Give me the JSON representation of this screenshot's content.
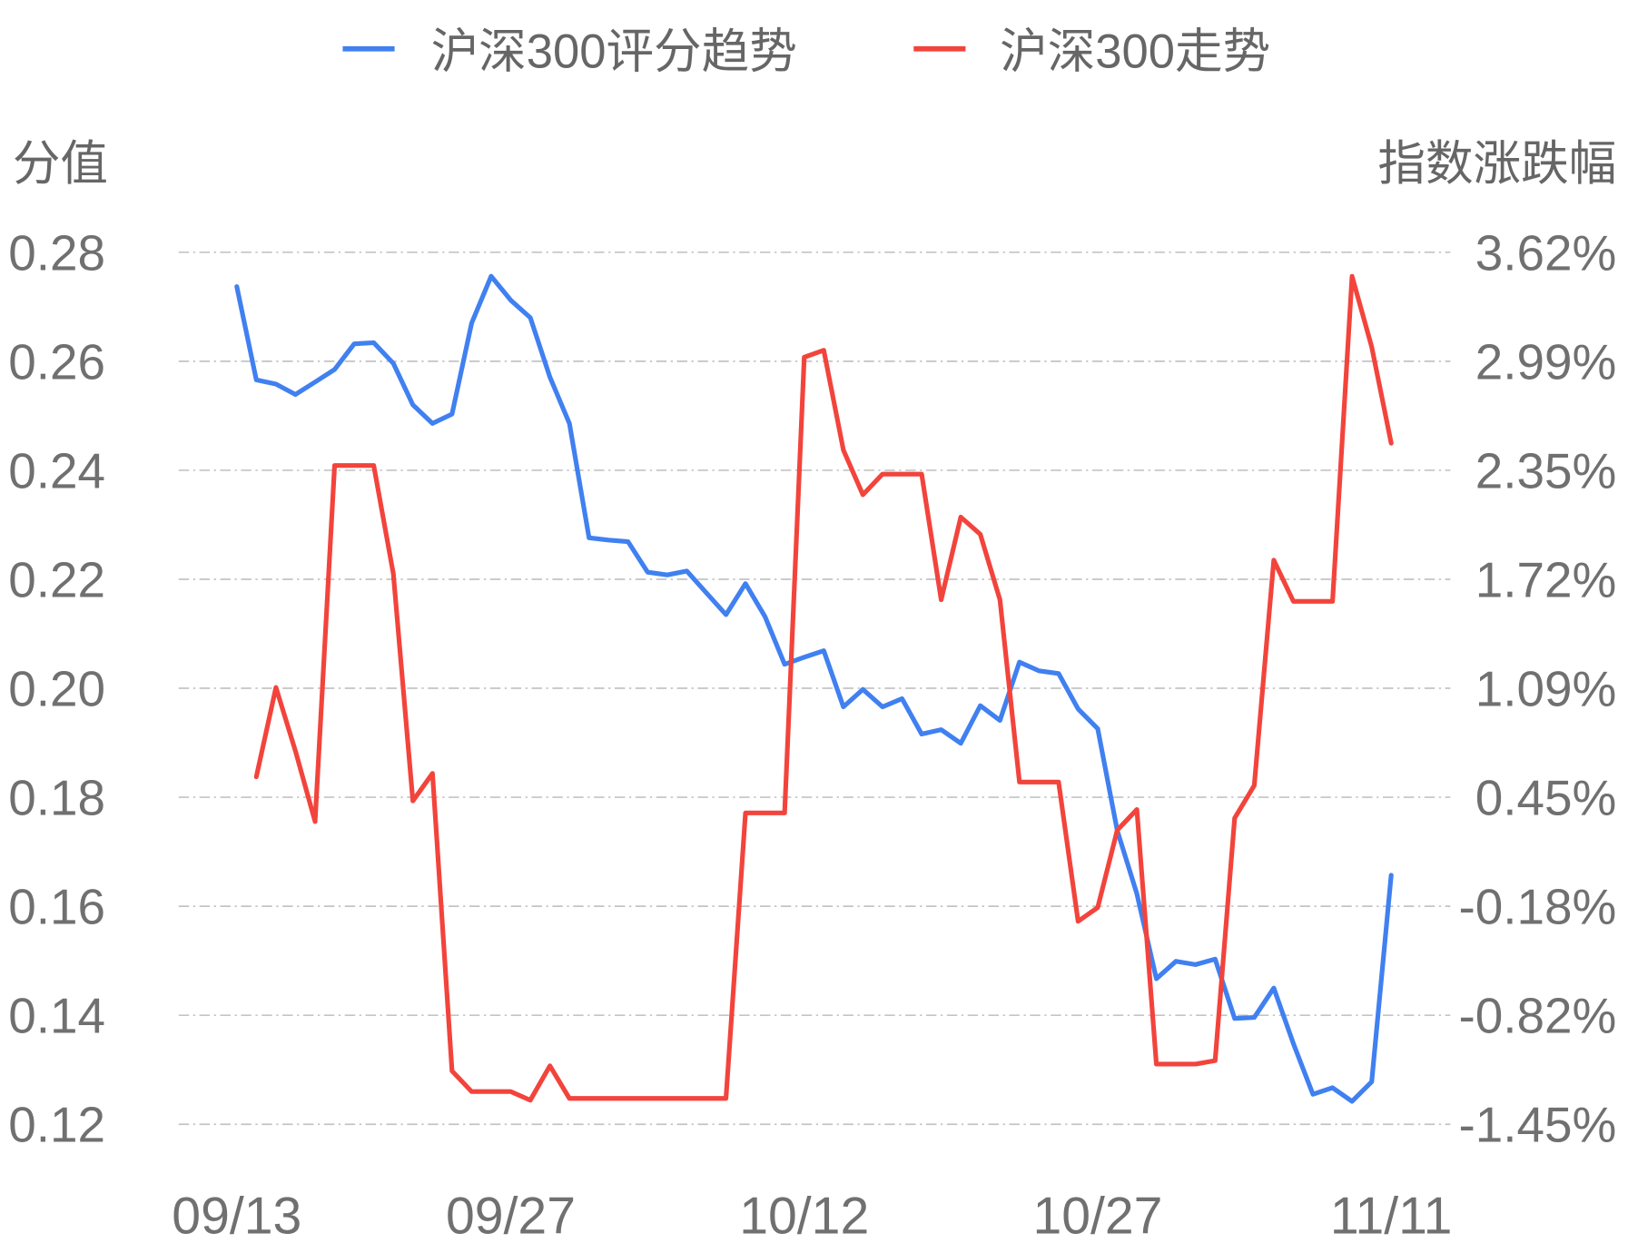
{
  "chart_data": {
    "type": "line",
    "legend_position": "top",
    "grid": true,
    "x": [
      "09/13",
      "09/14",
      "09/15",
      "09/16",
      "09/17",
      "09/18",
      "09/19",
      "09/20",
      "09/21",
      "09/22",
      "09/23",
      "09/24",
      "09/25",
      "09/26",
      "09/27",
      "09/28",
      "09/29",
      "09/30",
      "10/01",
      "10/02",
      "10/03",
      "10/04",
      "10/05",
      "10/06",
      "10/07",
      "10/08",
      "10/09",
      "10/10",
      "10/11",
      "10/12",
      "10/13",
      "10/14",
      "10/15",
      "10/16",
      "10/17",
      "10/18",
      "10/19",
      "10/20",
      "10/21",
      "10/22",
      "10/23",
      "10/24",
      "10/25",
      "10/26",
      "10/27",
      "10/28",
      "10/29",
      "10/30",
      "10/31",
      "11/01",
      "11/02",
      "11/03",
      "11/04",
      "11/05",
      "11/06",
      "11/07",
      "11/08",
      "11/09",
      "11/10",
      "11/11"
    ],
    "x_tick_labels": [
      "09/13",
      "09/27",
      "10/12",
      "10/27",
      "11/11"
    ],
    "y_left": {
      "label": "分值",
      "range": [
        0.12,
        0.28
      ],
      "tick_labels": [
        "0.28",
        "0.26",
        "0.24",
        "0.22",
        "0.20",
        "0.18",
        "0.16",
        "0.14",
        "0.12"
      ]
    },
    "y_right": {
      "label": "指数涨跌幅",
      "range": [
        -1.45,
        3.62
      ],
      "tick_labels": [
        "3.62%",
        "2.99%",
        "2.35%",
        "1.72%",
        "1.09%",
        "0.45%",
        "-0.18%",
        "-0.82%",
        "-1.45%"
      ]
    },
    "series": [
      {
        "name": "沪深300评分趋势",
        "axis": "left",
        "color": "#4080F0",
        "values": [
          0.2737,
          0.2566,
          0.2558,
          0.2539,
          0.2562,
          0.2585,
          0.2632,
          0.2634,
          0.2596,
          0.252,
          0.2486,
          0.2503,
          0.267,
          0.2756,
          0.2712,
          0.268,
          0.2571,
          0.2486,
          0.2276,
          0.2272,
          0.2269,
          0.2213,
          0.2208,
          0.2215,
          0.2175,
          0.2135,
          0.2192,
          0.2131,
          0.2044,
          0.2057,
          0.2069,
          0.1966,
          0.1998,
          0.1966,
          0.1981,
          0.1916,
          0.1924,
          0.1899,
          0.1968,
          0.1941,
          0.2048,
          0.2032,
          0.2027,
          0.1962,
          0.1926,
          0.1739,
          0.1623,
          0.1467,
          0.1499,
          0.1493,
          0.1503,
          0.1394,
          0.1396,
          0.145,
          0.1348,
          0.1255,
          0.1267,
          0.1242,
          0.1278,
          0.1657
        ]
      },
      {
        "name": "沪深300走势",
        "axis": "right",
        "color": "#F2443C",
        "values": [
          null,
          0.57,
          1.09,
          0.72,
          0.31,
          2.38,
          2.38,
          2.38,
          1.75,
          0.43,
          0.59,
          -1.14,
          -1.26,
          -1.26,
          -1.26,
          -1.31,
          -1.11,
          -1.3,
          -1.3,
          -1.3,
          -1.3,
          -1.3,
          -1.3,
          -1.3,
          -1.3,
          -1.3,
          0.36,
          0.36,
          0.36,
          3.01,
          3.05,
          2.47,
          2.21,
          2.33,
          2.33,
          2.33,
          1.6,
          2.08,
          1.98,
          1.6,
          0.54,
          0.54,
          0.54,
          -0.27,
          -0.19,
          0.26,
          0.38,
          -1.1,
          -1.1,
          -1.1,
          -1.08,
          0.33,
          0.52,
          1.83,
          1.59,
          1.59,
          1.59,
          3.48,
          3.07,
          2.51
        ]
      }
    ]
  }
}
